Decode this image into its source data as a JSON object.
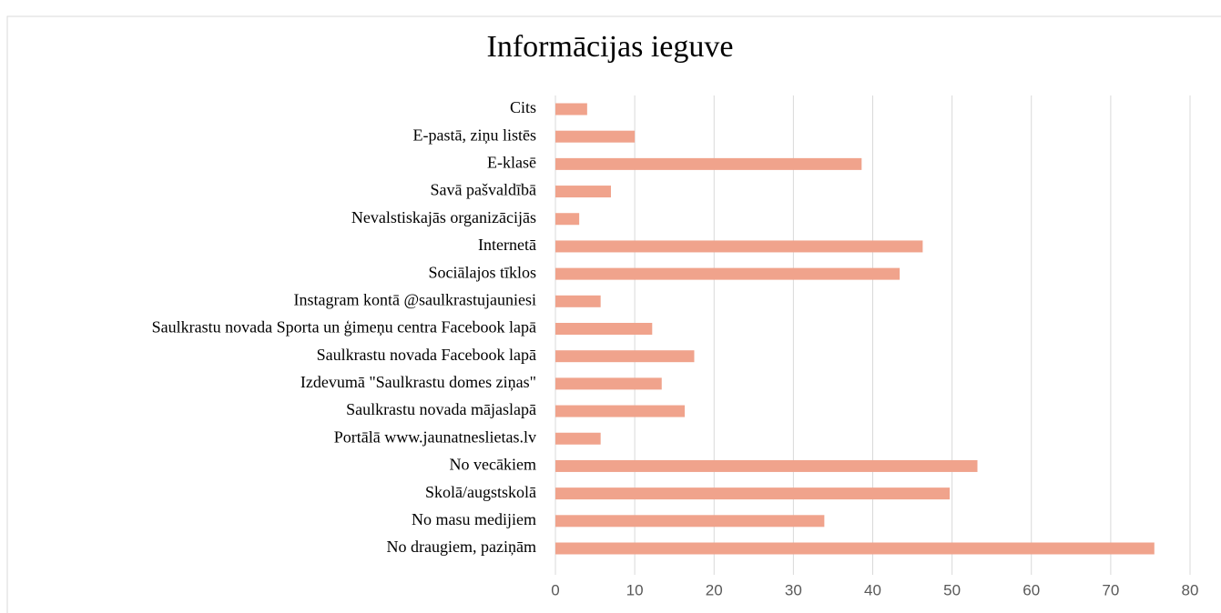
{
  "chart_data": {
    "type": "hbar",
    "title": "Informācijas ieguve",
    "categories": [
      "Cits",
      "E-pastā, ziņu listēs",
      "E-klasē",
      "Savā pašvaldībā",
      "Nevalstiskajās organizācijās",
      "Internetā",
      "Sociālajos tīklos",
      "Instagram kontā @saulkrastujauniesi",
      "Saulkrastu novada Sporta un ģimeņu centra Facebook lapā",
      "Saulkrastu novada Facebook lapā",
      "Izdevumā \"Saulkrastu domes ziņas\"",
      "Saulkrastu novada mājaslapā",
      "Portālā www.jaunatneslietas.lv",
      "No vecākiem",
      "Skolā/augstskolā",
      "No masu medijiem",
      "No draugiem, paziņām"
    ],
    "values": [
      4,
      10,
      38.6,
      7,
      3,
      46.3,
      43.4,
      5.7,
      12.2,
      17.5,
      13.4,
      16.3,
      5.7,
      53.2,
      49.7,
      33.9,
      75.5
    ],
    "color": "#f0a38c",
    "xlim": [
      0,
      80
    ],
    "xticks": [
      0,
      10,
      20,
      30,
      40,
      50,
      60,
      70,
      80
    ],
    "grid": true
  }
}
